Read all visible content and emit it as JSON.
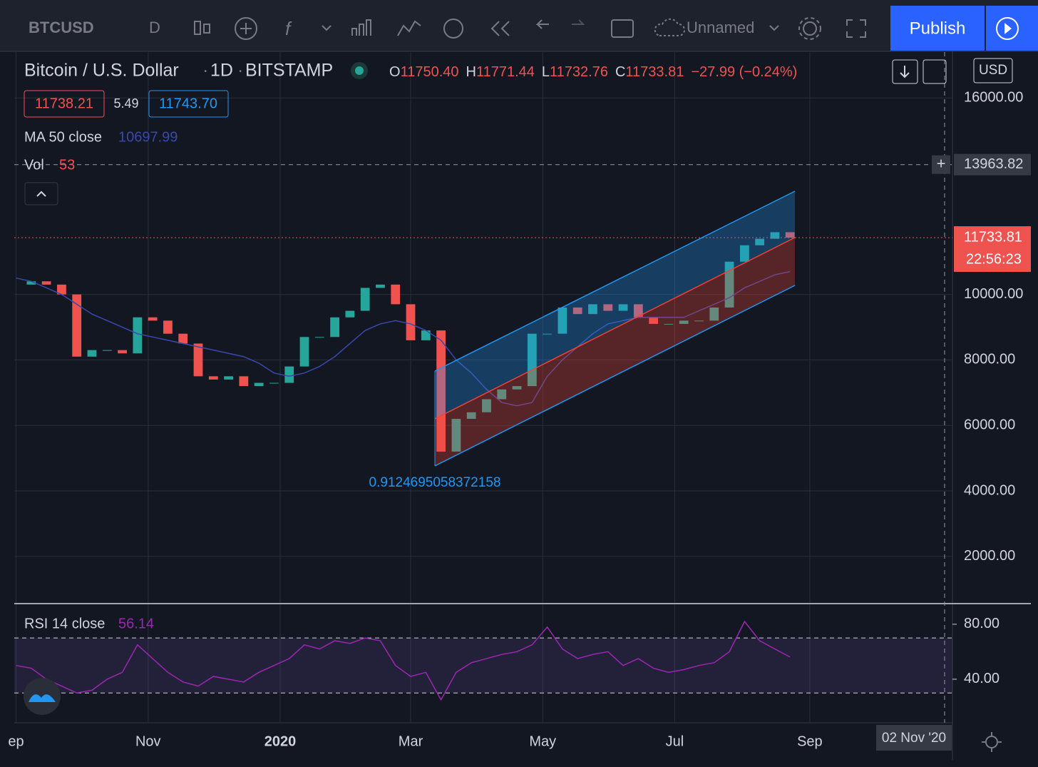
{
  "toolbar": {
    "symbol": "BTCUSD",
    "interval": "D",
    "layout_name": "Unnamed",
    "publish": "Publish"
  },
  "legend": {
    "pair": "Bitcoin / U.S. Dollar",
    "resolution": "1D",
    "exchange": "BITSTAMP",
    "open_label": "O",
    "open": "11750.40",
    "high_label": "H",
    "high": "11771.44",
    "low_label": "L",
    "low": "11732.76",
    "close_label": "C",
    "close": "11733.81",
    "change": "−27.99 (−0.24%)",
    "bid": "11738.21",
    "spread": "5.49",
    "ask": "11743.70",
    "ma_label": "MA 50 close",
    "ma_value": "10697.99",
    "vol_label": "Vol",
    "vol_value": "53",
    "rsi_label": "RSI 14 close",
    "rsi_value": "56.14"
  },
  "price_axis": {
    "currency": "USD",
    "crosshair": {
      "value": 13963.82,
      "label": "13963.82"
    },
    "last": {
      "value": 11733.81,
      "label": "11733.81"
    },
    "countdown": "22:56:23"
  },
  "time_axis": {
    "crosshair": "02 Nov '20"
  },
  "channel_label": "0.9124695058372158",
  "chart_data": {
    "type": "candlestick",
    "series": [
      {
        "name": "close",
        "up_color": "#26a69a",
        "down_color": "#ef5350",
        "values": [
          10300,
          10400,
          10300,
          10000,
          8100,
          8300,
          8300,
          8200,
          9300,
          9200,
          8800,
          8500,
          7500,
          7400,
          7500,
          7200,
          7300,
          7300,
          7800,
          8700,
          8700,
          9300,
          9500,
          10200,
          10300,
          9700,
          8600,
          8900,
          5200,
          6200,
          6400,
          6800,
          7100,
          7200,
          8800,
          8800,
          9600,
          9400,
          9700,
          9500,
          9700,
          9300,
          9100,
          9100,
          9200,
          9200,
          9600,
          11000,
          11500,
          11700,
          11900,
          11733.81
        ]
      },
      {
        "name": "MA 50 close",
        "color": "#3949ab",
        "values": [
          10500,
          10400,
          10200,
          10000,
          9700,
          9400,
          9200,
          9000,
          8800,
          8700,
          8600,
          8500,
          8400,
          8300,
          8200,
          8100,
          7900,
          7600,
          7500,
          7600,
          7800,
          8100,
          8500,
          8900,
          9100,
          9200,
          9100,
          8900,
          8600,
          8000,
          7600,
          7100,
          6700,
          6600,
          6700,
          7500,
          8000,
          8400,
          8800,
          9100,
          9200,
          9300,
          9300,
          9300,
          9300,
          9500,
          9700,
          9900,
          10200,
          10400,
          10600,
          10697.99
        ]
      }
    ],
    "xlim": [
      -0.12,
      61.7
    ],
    "xticks": [
      {
        "value": 0,
        "label": "ep"
      },
      {
        "value": 8.7,
        "label": "Nov"
      },
      {
        "value": 17.4,
        "label": "2020"
      },
      {
        "value": 26,
        "label": "Mar"
      },
      {
        "value": 34.7,
        "label": "May"
      },
      {
        "value": 43.4,
        "label": "Jul"
      },
      {
        "value": 52.3,
        "label": "Sep"
      }
    ],
    "ylim": [
      580,
      17400
    ],
    "yticks": [
      {
        "value": 2000,
        "label": "2000.00"
      },
      {
        "value": 4000,
        "label": "4000.00"
      },
      {
        "value": 6000,
        "label": "6000.00"
      },
      {
        "value": 8000,
        "label": "8000.00"
      },
      {
        "value": 10000,
        "label": "10000.00"
      },
      {
        "value": 16000,
        "label": "16000.00"
      }
    ],
    "grid": true,
    "rsi": {
      "color": "#9c27b0",
      "ylim": [
        8.3,
        94.5
      ],
      "bands": [
        30,
        70
      ],
      "yticks": [
        {
          "value": 40,
          "label": "40.00"
        },
        {
          "value": 80,
          "label": "80.00"
        }
      ],
      "values": [
        50,
        48,
        40,
        35,
        30,
        32,
        40,
        45,
        65,
        55,
        45,
        38,
        35,
        42,
        40,
        38,
        45,
        50,
        55,
        65,
        62,
        68,
        66,
        70,
        68,
        50,
        42,
        45,
        25,
        45,
        52,
        55,
        58,
        60,
        65,
        78,
        62,
        55,
        58,
        60,
        50,
        55,
        48,
        45,
        47,
        50,
        52,
        60,
        82,
        68,
        62,
        56.14
      ]
    }
  }
}
